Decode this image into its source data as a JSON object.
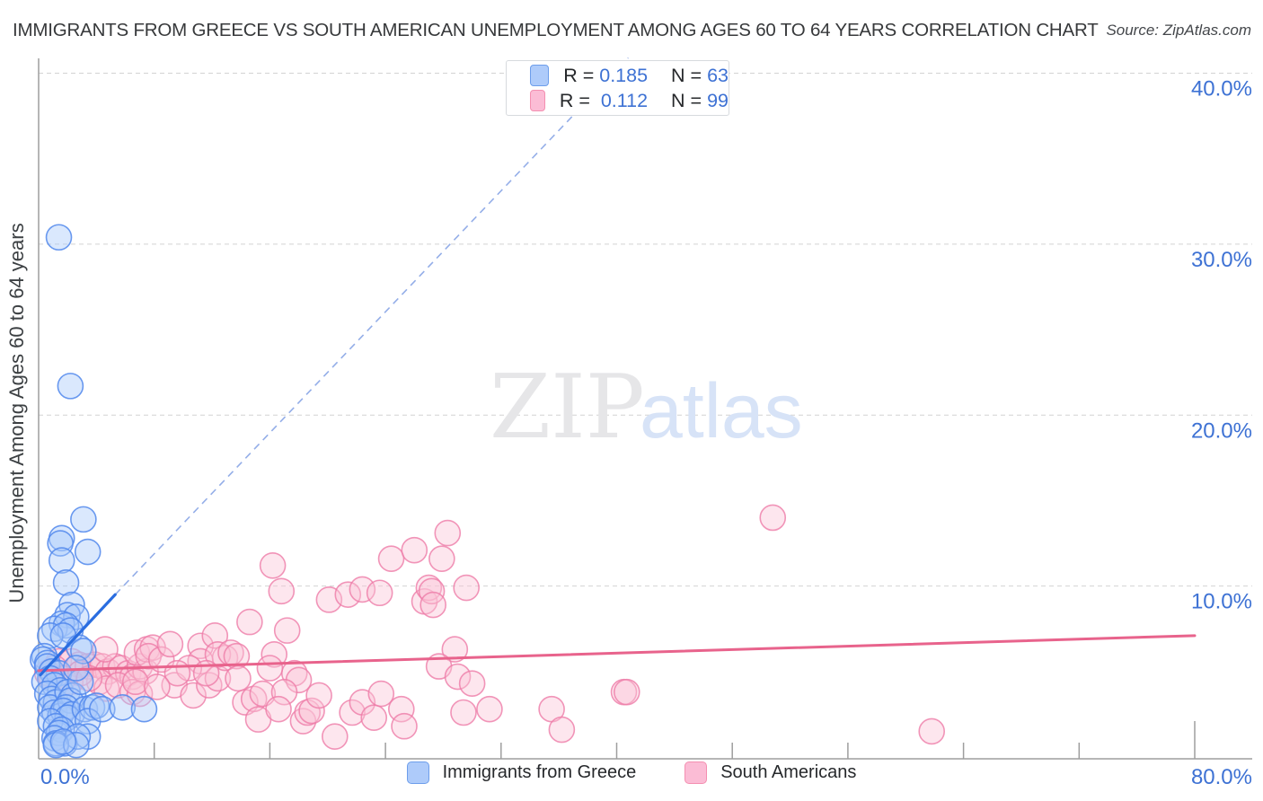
{
  "header": {
    "title": "IMMIGRANTS FROM GREECE VS SOUTH AMERICAN UNEMPLOYMENT AMONG AGES 60 TO 64 YEARS CORRELATION CHART",
    "source": "Source: ZipAtlas.com"
  },
  "watermark": {
    "zip": "ZIP",
    "atlas": "atlas"
  },
  "stats_legend": {
    "rows": [
      {
        "series": "greece",
        "r_label": "R = ",
        "r": "0.185",
        "n_label": "N = ",
        "n": "63"
      },
      {
        "series": "south_americans",
        "r_label": "R =  ",
        "r": "0.112",
        "n_label": "N = ",
        "n": "99"
      }
    ]
  },
  "bottom_legend": {
    "items": [
      {
        "series": "greece",
        "label": "Immigrants from Greece"
      },
      {
        "series": "south_americans",
        "label": "South Americans"
      }
    ]
  },
  "axes": {
    "y_label": "Unemployment Among Ages 60 to 64 years",
    "y_gridlines": [
      {
        "value": 40,
        "label": "40.0%"
      },
      {
        "value": 30,
        "label": "30.0%"
      },
      {
        "value": 20,
        "label": "20.0%"
      },
      {
        "value": 10,
        "label": "10.0%"
      }
    ],
    "x_min_label": "0.0%",
    "x_max_label": "80.0%"
  },
  "colors": {
    "blue_fill": "rgba(168,199,250,0.42)",
    "blue_stroke": "rgba(80,135,236,0.85)",
    "blue_swatch_fill": "#aecbfa",
    "blue_swatch_stroke": "#6d9eeb",
    "blue_trend": "#2a6de0",
    "blue_trend_dash": "#94aee8",
    "pink_fill": "rgba(250,196,215,0.42)",
    "pink_stroke": "rgba(238,124,168,0.8)",
    "pink_swatch_fill": "#fbbcd5",
    "pink_swatch_stroke": "#f48fb1",
    "pink_trend": "#e8638c",
    "axis_line": "#9e9e9e",
    "gridline": "#d2d2d2",
    "tick_label": "#3e72d4",
    "axis_title": "#3c4043",
    "watermark_zip": "#e6e6e8",
    "watermark_atlas": "#d7e3f7"
  },
  "chart_data": {
    "type": "scatter",
    "title": "IMMIGRANTS FROM GREECE VS SOUTH AMERICAN UNEMPLOYMENT AMONG AGES 60 TO 64 YEARS CORRELATION CHART",
    "xlabel": "Immigrants from Greece (%)",
    "ylabel": "Unemployment Among Ages 60 to 64 years",
    "x_axis": {
      "min": 0,
      "max": 80,
      "tick_step": 8,
      "unit": "%"
    },
    "y_axis": {
      "min": 0,
      "max": 41,
      "gridlines": [
        10,
        20,
        30,
        40
      ],
      "unit": "%"
    },
    "legend_position": "top-center",
    "grid": "dashed-horizontal",
    "series": [
      {
        "name": "Immigrants from Greece",
        "R": 0.185,
        "N": 63,
        "points": [
          [
            1.4,
            30.4
          ],
          [
            2.2,
            21.7
          ],
          [
            3.1,
            13.9
          ],
          [
            1.6,
            12.8
          ],
          [
            1.5,
            12.5
          ],
          [
            3.4,
            12.0
          ],
          [
            1.6,
            11.5
          ],
          [
            1.9,
            10.2
          ],
          [
            2.3,
            8.9
          ],
          [
            2.0,
            8.3
          ],
          [
            2.6,
            8.2
          ],
          [
            1.6,
            7.8
          ],
          [
            1.1,
            7.5
          ],
          [
            1.9,
            7.7
          ],
          [
            2.2,
            7.4
          ],
          [
            0.8,
            7.1
          ],
          [
            1.7,
            7.1
          ],
          [
            2.8,
            6.4
          ],
          [
            3.1,
            6.2
          ],
          [
            0.4,
            5.9
          ],
          [
            0.3,
            5.7
          ],
          [
            0.6,
            5.5
          ],
          [
            0.6,
            5.3
          ],
          [
            0.9,
            5.0
          ],
          [
            1.4,
            4.9
          ],
          [
            0.8,
            4.6
          ],
          [
            0.4,
            4.4
          ],
          [
            1.1,
            4.2
          ],
          [
            1.5,
            3.9
          ],
          [
            0.6,
            3.7
          ],
          [
            0.9,
            3.4
          ],
          [
            1.2,
            3.2
          ],
          [
            0.8,
            2.9
          ],
          [
            1.1,
            2.6
          ],
          [
            1.5,
            2.4
          ],
          [
            2.0,
            3.8
          ],
          [
            2.4,
            3.6
          ],
          [
            2.2,
            3.3
          ],
          [
            1.9,
            2.9
          ],
          [
            1.7,
            2.7
          ],
          [
            2.3,
            2.5
          ],
          [
            2.0,
            2.3
          ],
          [
            0.8,
            2.1
          ],
          [
            1.2,
            1.8
          ],
          [
            1.6,
            1.6
          ],
          [
            1.4,
            1.4
          ],
          [
            1.1,
            1.1
          ],
          [
            1.8,
            0.8
          ],
          [
            3.2,
            2.8
          ],
          [
            3.7,
            2.9
          ],
          [
            4.0,
            3.0
          ],
          [
            3.4,
            2.1
          ],
          [
            4.4,
            2.8
          ],
          [
            5.8,
            2.9
          ],
          [
            7.3,
            2.8
          ],
          [
            3.4,
            1.2
          ],
          [
            1.2,
            0.8
          ],
          [
            2.7,
            1.2
          ],
          [
            1.2,
            0.7
          ],
          [
            2.6,
            0.7
          ],
          [
            1.7,
            0.9
          ],
          [
            2.9,
            4.4
          ],
          [
            2.6,
            5.2
          ]
        ],
        "trend_solid": [
          [
            0.12,
            4.8
          ],
          [
            5.3,
            9.5
          ]
        ],
        "trend_dashed": [
          [
            5.3,
            9.5
          ],
          [
            40.8,
            40.9
          ]
        ]
      },
      {
        "name": "South Americans",
        "R": 0.112,
        "N": 99,
        "points": [
          [
            1.4,
            5.6
          ],
          [
            2.3,
            5.6
          ],
          [
            2.8,
            5.4
          ],
          [
            3.4,
            5.3
          ],
          [
            3.9,
            5.4
          ],
          [
            4.4,
            5.3
          ],
          [
            4.8,
            5.0
          ],
          [
            5.3,
            5.3
          ],
          [
            5.7,
            5.2
          ],
          [
            6.2,
            4.9
          ],
          [
            6.5,
            4.7
          ],
          [
            7.0,
            5.3
          ],
          [
            7.4,
            5.0
          ],
          [
            4.6,
            6.3
          ],
          [
            6.8,
            6.1
          ],
          [
            7.5,
            6.3
          ],
          [
            4.2,
            4.4
          ],
          [
            4.7,
            4.0
          ],
          [
            5.5,
            4.2
          ],
          [
            6.5,
            3.8
          ],
          [
            7.0,
            3.7
          ],
          [
            1.1,
            5.2
          ],
          [
            0.6,
            4.9
          ],
          [
            0.9,
            4.6
          ],
          [
            1.7,
            4.6
          ],
          [
            2.2,
            4.4
          ],
          [
            2.9,
            4.9
          ],
          [
            3.5,
            4.6
          ],
          [
            7.9,
            6.4
          ],
          [
            7.6,
            5.9
          ],
          [
            8.5,
            5.7
          ],
          [
            9.1,
            6.6
          ],
          [
            9.4,
            4.2
          ],
          [
            10.7,
            3.6
          ],
          [
            11.2,
            6.5
          ],
          [
            11.2,
            5.6
          ],
          [
            11.8,
            4.2
          ],
          [
            12.2,
            7.1
          ],
          [
            12.4,
            4.6
          ],
          [
            12.9,
            5.8
          ],
          [
            12.4,
            6.0
          ],
          [
            13.3,
            6.1
          ],
          [
            13.7,
            5.9
          ],
          [
            14.3,
            3.2
          ],
          [
            14.6,
            7.9
          ],
          [
            14.9,
            3.4
          ],
          [
            15.5,
            3.7
          ],
          [
            15.2,
            2.2
          ],
          [
            16.2,
            11.2
          ],
          [
            16.3,
            6.0
          ],
          [
            16.8,
            9.7
          ],
          [
            17.2,
            7.4
          ],
          [
            17.7,
            4.9
          ],
          [
            18.0,
            4.5
          ],
          [
            17.0,
            3.8
          ],
          [
            18.3,
            2.1
          ],
          [
            18.6,
            2.6
          ],
          [
            18.9,
            2.7
          ],
          [
            20.1,
            9.2
          ],
          [
            20.5,
            1.2
          ],
          [
            21.4,
            9.5
          ],
          [
            21.7,
            2.6
          ],
          [
            22.4,
            9.8
          ],
          [
            22.4,
            3.2
          ],
          [
            23.2,
            2.3
          ],
          [
            23.6,
            9.6
          ],
          [
            23.7,
            3.7
          ],
          [
            24.4,
            11.6
          ],
          [
            25.1,
            2.8
          ],
          [
            25.3,
            1.8
          ],
          [
            26.0,
            12.1
          ],
          [
            26.7,
            9.1
          ],
          [
            27.0,
            9.9
          ],
          [
            28.3,
            13.1
          ],
          [
            27.9,
            11.6
          ],
          [
            29.6,
            9.9
          ],
          [
            27.2,
            9.7
          ],
          [
            27.3,
            8.9
          ],
          [
            28.8,
            6.3
          ],
          [
            27.7,
            5.3
          ],
          [
            29.0,
            4.7
          ],
          [
            30.0,
            4.3
          ],
          [
            29.4,
            2.6
          ],
          [
            31.2,
            2.8
          ],
          [
            35.5,
            2.8
          ],
          [
            36.2,
            1.6
          ],
          [
            40.5,
            3.8
          ],
          [
            40.7,
            3.8
          ],
          [
            50.8,
            14.0
          ],
          [
            61.8,
            1.5
          ],
          [
            10.4,
            5.2
          ],
          [
            9.6,
            4.9
          ],
          [
            11.6,
            4.9
          ],
          [
            13.8,
            4.6
          ],
          [
            6.7,
            4.4
          ],
          [
            8.2,
            4.1
          ],
          [
            16.0,
            5.2
          ],
          [
            19.4,
            3.6
          ],
          [
            16.6,
            2.8
          ]
        ],
        "trend_solid": [
          [
            0,
            5.05
          ],
          [
            80,
            7.1
          ]
        ]
      }
    ]
  }
}
